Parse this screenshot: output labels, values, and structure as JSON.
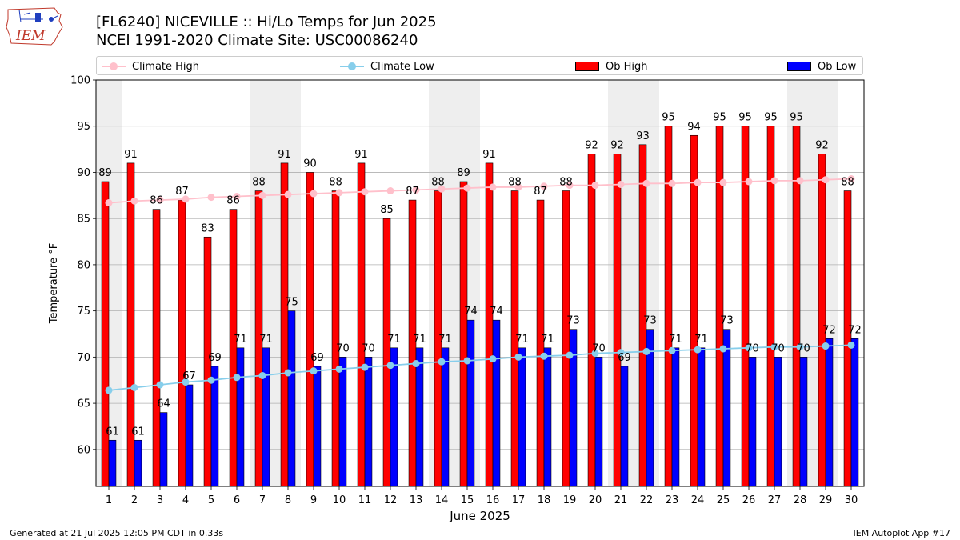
{
  "header": {
    "title_line1": "[FL6240] NICEVILLE :: Hi/Lo Temps for Jun 2025",
    "title_line2": "NCEI 1991-2020 Climate Site: USC00086240",
    "logo_text": "IEM"
  },
  "footer": {
    "generated": "Generated at 21 Jul 2025 12:05 PM CDT in 0.33s",
    "app": "IEM Autoplot App #17"
  },
  "colors": {
    "ob_high": "#ff0000",
    "ob_low": "#0000ff",
    "climate_high": "#ffc0cb",
    "climate_low": "#87ceeb",
    "weekend_shade": "#eeeeee",
    "grid": "#b0b0b0",
    "logo_red": "#c0392b"
  },
  "legend": {
    "climate_high": "Climate High",
    "climate_low": "Climate Low",
    "ob_high": "Ob High",
    "ob_low": "Ob Low"
  },
  "chart_data": {
    "type": "bar",
    "title": "[FL6240] NICEVILLE :: Hi/Lo Temps for Jun 2025",
    "subtitle": "NCEI 1991-2020 Climate Site: USC00086240",
    "xlabel": "June 2025",
    "ylabel": "Temperature °F",
    "ylim": [
      56,
      100
    ],
    "yticks": [
      60,
      65,
      70,
      75,
      80,
      85,
      90,
      95,
      100
    ],
    "grid": true,
    "legend_position": "top",
    "categories": [
      "1",
      "2",
      "3",
      "4",
      "5",
      "6",
      "7",
      "8",
      "9",
      "10",
      "11",
      "12",
      "13",
      "14",
      "15",
      "16",
      "17",
      "18",
      "19",
      "20",
      "21",
      "22",
      "23",
      "24",
      "25",
      "26",
      "27",
      "28",
      "29",
      "30"
    ],
    "shaded_days": [
      1,
      7,
      8,
      14,
      15,
      21,
      22,
      28,
      29
    ],
    "series": [
      {
        "name": "Ob High",
        "kind": "bar",
        "values": [
          89,
          91,
          86,
          87,
          83,
          86,
          88,
          91,
          90,
          88,
          91,
          85,
          87,
          88,
          89,
          91,
          88,
          87,
          88,
          92,
          92,
          93,
          95,
          94,
          95,
          95,
          95,
          95,
          92,
          88
        ]
      },
      {
        "name": "Ob Low",
        "kind": "bar",
        "values": [
          61,
          61,
          64,
          67,
          69,
          71,
          71,
          75,
          69,
          70,
          70,
          71,
          71,
          71,
          74,
          74,
          71,
          71,
          73,
          70,
          69,
          73,
          71,
          71,
          73,
          70,
          70,
          70,
          72,
          72
        ]
      },
      {
        "name": "Climate High",
        "kind": "line",
        "values": [
          86.7,
          86.9,
          87.0,
          87.1,
          87.3,
          87.4,
          87.5,
          87.6,
          87.7,
          87.8,
          87.9,
          88.0,
          88.1,
          88.2,
          88.3,
          88.4,
          88.4,
          88.5,
          88.6,
          88.6,
          88.7,
          88.8,
          88.8,
          88.9,
          88.9,
          89.0,
          89.1,
          89.1,
          89.2,
          89.3
        ]
      },
      {
        "name": "Climate Low",
        "kind": "line",
        "values": [
          66.4,
          66.7,
          67.0,
          67.3,
          67.5,
          67.8,
          68.0,
          68.3,
          68.5,
          68.7,
          68.9,
          69.1,
          69.3,
          69.5,
          69.6,
          69.8,
          70.0,
          70.1,
          70.2,
          70.4,
          70.5,
          70.6,
          70.7,
          70.8,
          70.9,
          71.0,
          71.1,
          71.1,
          71.2,
          71.3
        ]
      }
    ]
  }
}
